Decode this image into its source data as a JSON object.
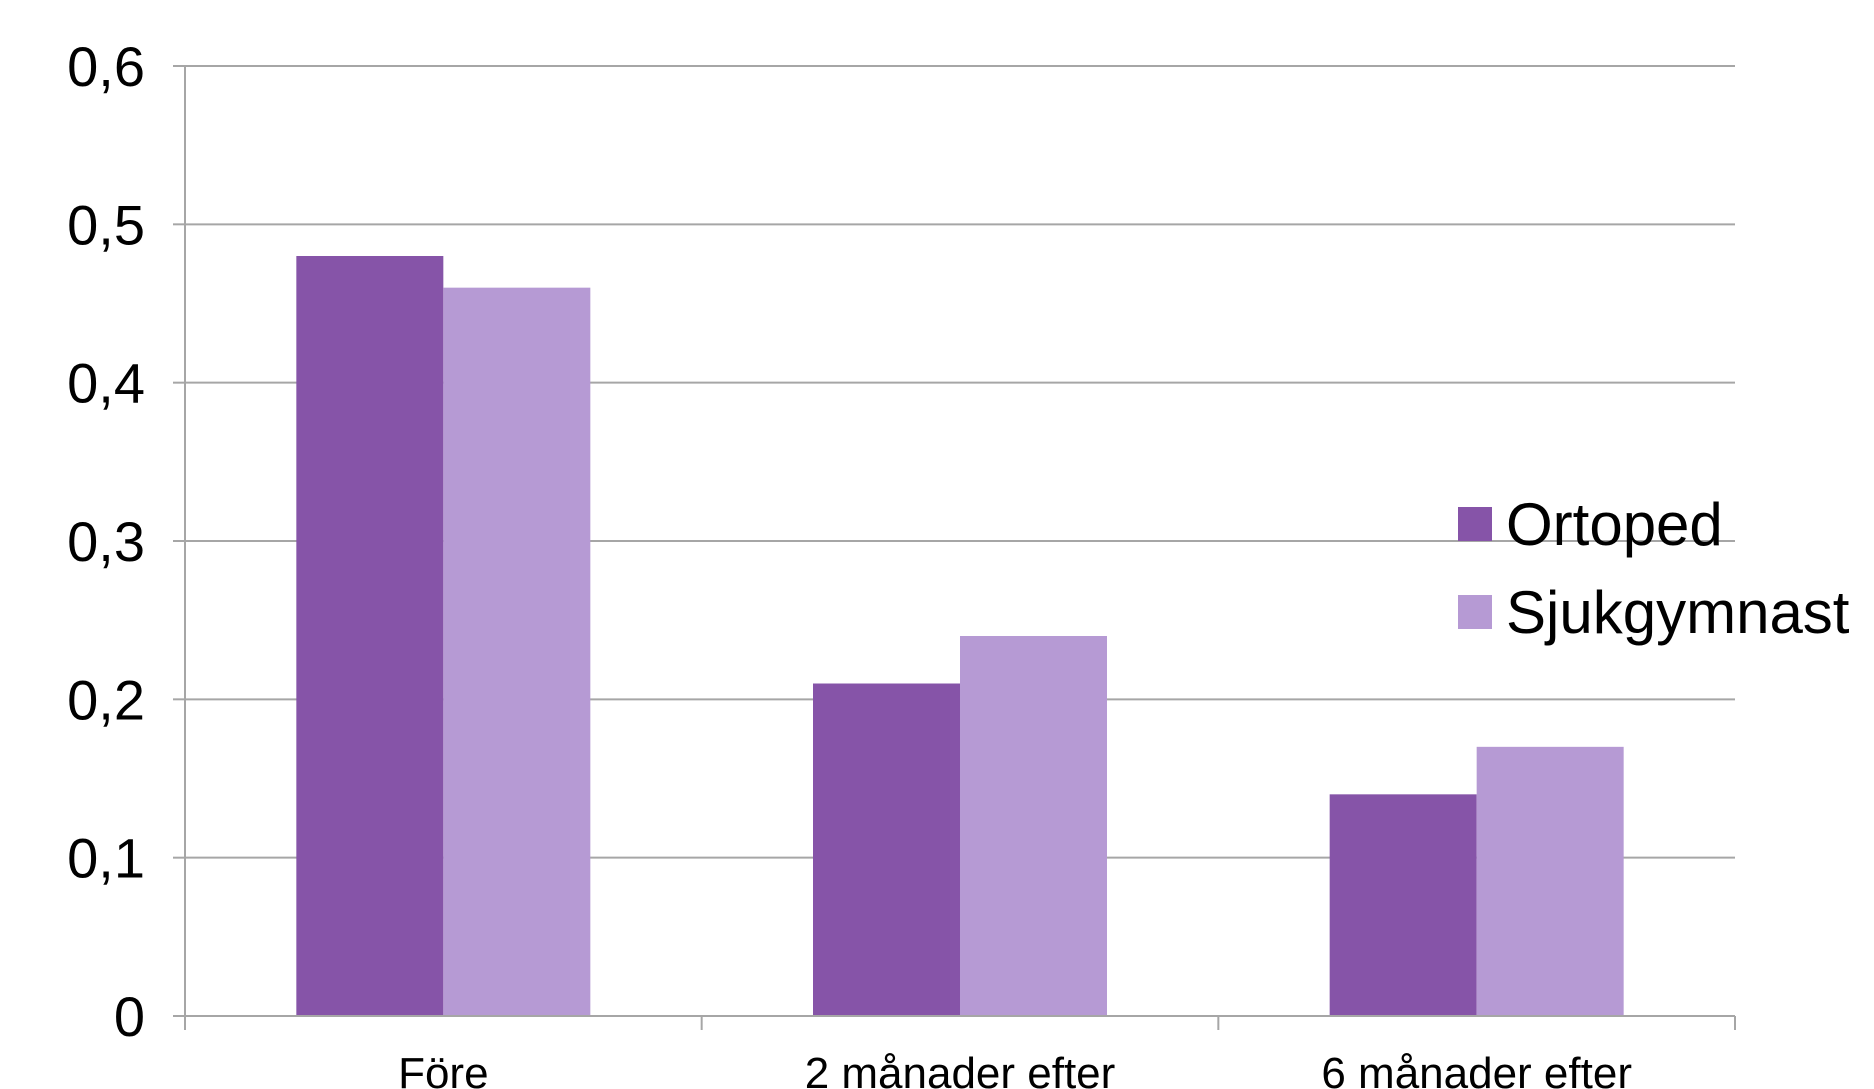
{
  "chart_data": {
    "type": "bar",
    "categories": [
      "Före",
      "2 månader efter",
      "6 månader efter"
    ],
    "series": [
      {
        "name": "Ortoped",
        "values": [
          0.48,
          0.21,
          0.14
        ],
        "color": "#8654A8"
      },
      {
        "name": "Sjukgymnast",
        "values": [
          0.46,
          0.24,
          0.17
        ],
        "color": "#B69AD4"
      }
    ],
    "title": "",
    "xlabel": "",
    "ylabel": "",
    "ylim": [
      0,
      0.6
    ],
    "yticks": [
      {
        "value": 0,
        "label": "0"
      },
      {
        "value": 0.1,
        "label": "0,1"
      },
      {
        "value": 0.2,
        "label": "0,2"
      },
      {
        "value": 0.3,
        "label": "0,3"
      },
      {
        "value": 0.4,
        "label": "0,4"
      },
      {
        "value": 0.5,
        "label": "0,5"
      },
      {
        "value": 0.6,
        "label": "0,6"
      }
    ],
    "grid": true,
    "gridColor": "#A6A6A6",
    "legend": "right"
  }
}
